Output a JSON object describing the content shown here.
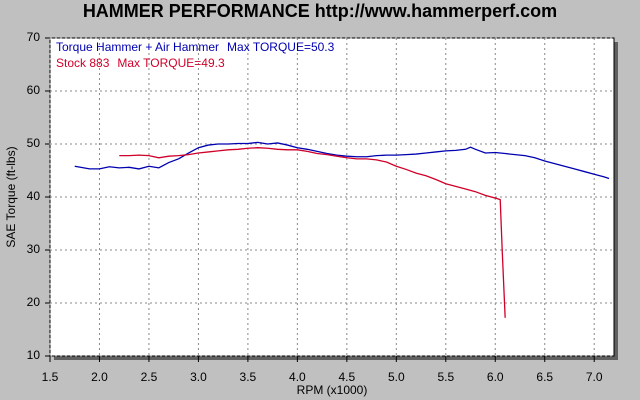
{
  "chart_data": {
    "type": "line",
    "title": "HAMMER PERFORMANCE http://www.hammerperf.com",
    "x_label": "RPM (x1000)",
    "y_label": "SAE Torque (ft-lbs)",
    "xlim": [
      1.5,
      7.2
    ],
    "ylim": [
      10,
      70
    ],
    "xticks": [
      {
        "value": 1.5,
        "label": "1.5"
      },
      {
        "value": 2,
        "label": "2.0"
      },
      {
        "value": 2.5,
        "label": "2.5"
      },
      {
        "value": 3,
        "label": "3.0"
      },
      {
        "value": 3.5,
        "label": "3.5"
      },
      {
        "value": 4,
        "label": "4.0"
      },
      {
        "value": 4.5,
        "label": "4.5"
      },
      {
        "value": 5,
        "label": "5.0"
      },
      {
        "value": 5.5,
        "label": "5.5"
      },
      {
        "value": 6,
        "label": "6.0"
      },
      {
        "value": 6.5,
        "label": "6.5"
      },
      {
        "value": 7,
        "label": "7.0"
      }
    ],
    "yticks": [
      10,
      20,
      30,
      40,
      50,
      60,
      70
    ],
    "grid": true,
    "series": [
      {
        "name": "Torque Hammer + Air Hammer",
        "annotation": "Max TORQUE=50.3",
        "color": "#0000b0",
        "x": [
          1.75,
          1.9,
          2.0,
          2.1,
          2.2,
          2.3,
          2.4,
          2.5,
          2.6,
          2.7,
          2.8,
          2.9,
          3.0,
          3.1,
          3.2,
          3.3,
          3.4,
          3.5,
          3.6,
          3.7,
          3.8,
          3.9,
          4.0,
          4.1,
          4.2,
          4.3,
          4.4,
          4.5,
          4.6,
          4.7,
          4.8,
          4.9,
          5.0,
          5.1,
          5.2,
          5.3,
          5.4,
          5.5,
          5.6,
          5.7,
          5.75,
          5.8,
          5.9,
          6.0,
          6.1,
          6.2,
          6.3,
          6.4,
          6.5,
          6.6,
          6.7,
          6.8,
          6.9,
          7.0,
          7.1,
          7.15
        ],
        "values": [
          45.8,
          45.3,
          45.3,
          45.7,
          45.5,
          45.6,
          45.3,
          45.8,
          45.5,
          46.5,
          47.2,
          48.3,
          49.3,
          49.8,
          50.0,
          50.0,
          50.1,
          50.1,
          50.3,
          50.0,
          50.2,
          49.8,
          49.3,
          49.0,
          48.6,
          48.2,
          47.9,
          47.7,
          47.6,
          47.6,
          47.8,
          47.9,
          47.9,
          48.0,
          48.1,
          48.3,
          48.5,
          48.7,
          48.8,
          49.0,
          49.4,
          49.0,
          48.3,
          48.4,
          48.2,
          48.0,
          47.8,
          47.4,
          46.8,
          46.3,
          45.8,
          45.3,
          44.8,
          44.3,
          43.8,
          43.5
        ]
      },
      {
        "name": "Stock 883",
        "annotation": "Max TORQUE=49.3",
        "color": "#d0002a",
        "x": [
          2.2,
          2.3,
          2.4,
          2.5,
          2.6,
          2.7,
          2.8,
          2.9,
          3.0,
          3.1,
          3.2,
          3.3,
          3.4,
          3.5,
          3.6,
          3.7,
          3.8,
          3.9,
          4.0,
          4.1,
          4.2,
          4.3,
          4.4,
          4.5,
          4.6,
          4.7,
          4.8,
          4.9,
          5.0,
          5.1,
          5.2,
          5.3,
          5.4,
          5.5,
          5.6,
          5.7,
          5.8,
          5.9,
          6.0,
          6.05,
          6.07,
          6.1
        ],
        "values": [
          47.8,
          47.8,
          47.9,
          47.8,
          47.4,
          47.7,
          47.8,
          48.0,
          48.3,
          48.5,
          48.7,
          48.9,
          49.0,
          49.2,
          49.3,
          49.2,
          49.0,
          48.9,
          48.9,
          48.6,
          48.2,
          48.0,
          47.7,
          47.4,
          47.2,
          47.2,
          47.0,
          46.6,
          45.8,
          45.2,
          44.5,
          44.0,
          43.3,
          42.5,
          42.0,
          41.5,
          41.0,
          40.3,
          39.8,
          39.5,
          30,
          17.2
        ]
      }
    ]
  }
}
